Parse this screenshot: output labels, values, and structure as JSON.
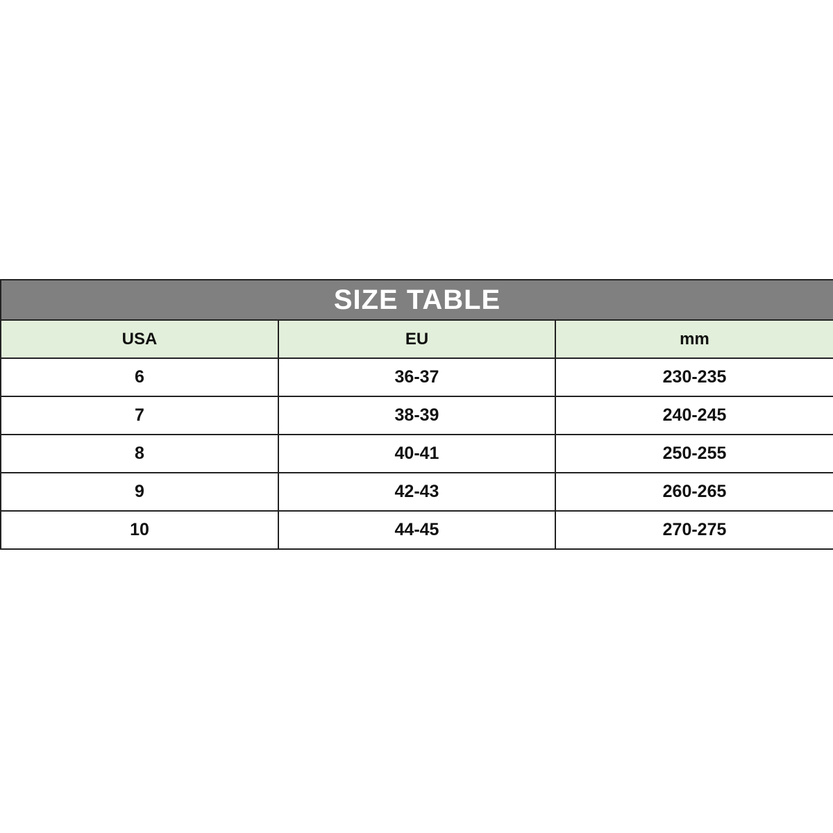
{
  "title": "SIZE TABLE",
  "colors": {
    "title_bg": "#808080",
    "header_bg": "#e2efda"
  },
  "columns": [
    "USA",
    "EU",
    "mm"
  ],
  "rows": [
    [
      "6",
      "36-37",
      "230-235"
    ],
    [
      "7",
      "38-39",
      "240-245"
    ],
    [
      "8",
      "40-41",
      "250-255"
    ],
    [
      "9",
      "42-43",
      "260-265"
    ],
    [
      "10",
      "44-45",
      "270-275"
    ]
  ]
}
